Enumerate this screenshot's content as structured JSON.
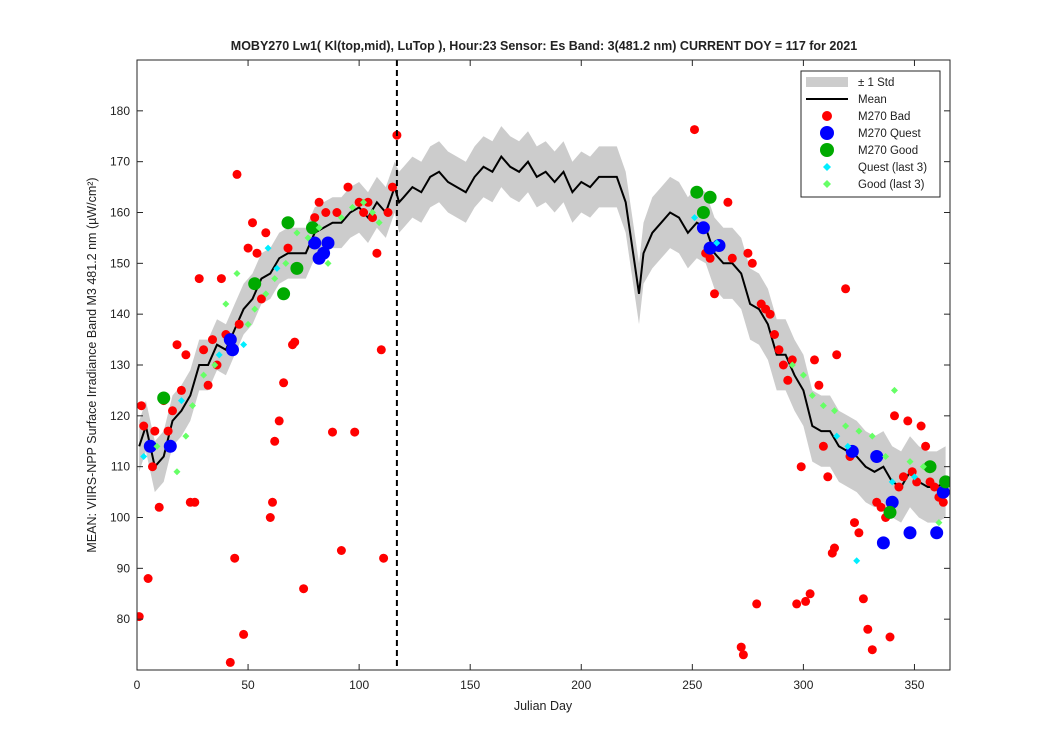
{
  "chart_data": {
    "type": "scatter",
    "title": "MOBY270   Lw1( Kl(top,mid), LuTop ),   Hour:23 Sensor: Es Band: 3(481.2 nm)   CURRENT DOY = 117 for 2021",
    "xlabel": "Julian Day",
    "ylabel": "MEAN: VIIRS-NPP Surface Irradiance Band M3 481.2 nm (µW/cm²)",
    "xlim": [
      0,
      366
    ],
    "ylim": [
      70,
      190
    ],
    "xticks": [
      "0",
      "50",
      "100",
      "150",
      "200",
      "250",
      "300",
      "350"
    ],
    "yticks": [
      "80",
      "90",
      "100",
      "110",
      "120",
      "130",
      "140",
      "150",
      "160",
      "170",
      "180"
    ],
    "current_doy": 117,
    "grid": false,
    "legend_position": "top-right",
    "legend": {
      "std": "± 1 Std",
      "mean": "Mean",
      "bad": "M270 Bad",
      "quest": "M270 Quest",
      "good": "M270 Good",
      "quest3": "Quest (last 3)",
      "good3": "Good (last 3)"
    },
    "colors": {
      "std_band": "#cccccc",
      "mean": "#000000",
      "bad": "#ff0000",
      "quest": "#0000ff",
      "good": "#00aa00",
      "quest3": "#00eeff",
      "good3": "#66ff66",
      "current_line": "#000000"
    },
    "mean_series": {
      "x": [
        1,
        4,
        8,
        12,
        16,
        20,
        24,
        28,
        32,
        36,
        40,
        44,
        48,
        52,
        56,
        60,
        64,
        68,
        72,
        76,
        80,
        84,
        88,
        92,
        96,
        100,
        104,
        108,
        112,
        116,
        118,
        120,
        124,
        128,
        132,
        136,
        140,
        144,
        148,
        152,
        156,
        160,
        164,
        168,
        172,
        176,
        180,
        184,
        188,
        192,
        196,
        200,
        204,
        208,
        212,
        216,
        220,
        224,
        226,
        228,
        232,
        236,
        240,
        244,
        248,
        252,
        256,
        260,
        264,
        268,
        272,
        276,
        280,
        284,
        288,
        292,
        296,
        300,
        304,
        308,
        312,
        316,
        320,
        324,
        328,
        332,
        336,
        340,
        344,
        348,
        352,
        356,
        360,
        364
      ],
      "y": [
        114,
        118,
        110,
        112,
        119,
        121,
        124,
        130,
        130,
        134,
        133,
        137,
        141,
        143,
        147,
        148,
        151,
        152,
        152,
        152,
        156,
        157,
        158,
        158,
        160,
        161,
        159,
        162,
        160,
        165,
        162,
        163,
        165,
        164,
        167,
        168,
        166,
        165,
        164,
        167,
        169,
        168,
        171,
        169,
        168,
        170,
        167,
        168,
        166,
        168,
        164,
        166,
        165,
        167,
        167,
        167,
        162,
        150,
        144,
        152,
        156,
        158,
        160,
        159,
        156,
        158,
        157,
        152,
        150,
        150,
        148,
        142,
        141,
        138,
        132,
        132,
        128,
        125,
        118,
        117,
        117,
        114,
        113,
        112,
        110,
        109,
        110,
        107,
        106,
        109,
        107,
        106,
        106,
        107
      ],
      "std": [
        5,
        5,
        5,
        5,
        5,
        5,
        5,
        5,
        5,
        5,
        5,
        5,
        5,
        5,
        5,
        5,
        5,
        5,
        5,
        5,
        5,
        5,
        5,
        5,
        5,
        5,
        5,
        5,
        5,
        5,
        6,
        6,
        6,
        6,
        6,
        6,
        6,
        6,
        6,
        6,
        6,
        6,
        6,
        6,
        6,
        6,
        6,
        6,
        6,
        6,
        6,
        6,
        6,
        6,
        6,
        6,
        6,
        6,
        6,
        6,
        7,
        7,
        7,
        7,
        7,
        7,
        7,
        7,
        7,
        7,
        7,
        7,
        7,
        7,
        7,
        7,
        7,
        7,
        7,
        7,
        7,
        7,
        7,
        7,
        7,
        7,
        7,
        7,
        7,
        7,
        7,
        7,
        7,
        7
      ]
    },
    "series": [
      {
        "name": "M270 Bad",
        "x": [
          1,
          2,
          3,
          5,
          7,
          8,
          10,
          12,
          14,
          16,
          18,
          20,
          22,
          24,
          26,
          28,
          30,
          32,
          34,
          36,
          38,
          40,
          42,
          44,
          45,
          46,
          48,
          50,
          52,
          54,
          56,
          58,
          60,
          61,
          62,
          64,
          66,
          68,
          70,
          71,
          75,
          80,
          82,
          85,
          88,
          90,
          92,
          95,
          98,
          100,
          102,
          104,
          106,
          108,
          110,
          111,
          113,
          115,
          117,
          251,
          256,
          258,
          260,
          266,
          268,
          272,
          273,
          275,
          277,
          279,
          281,
          283,
          285,
          287,
          289,
          291,
          293,
          295,
          297,
          299,
          301,
          303,
          305,
          307,
          309,
          311,
          313,
          314,
          315,
          319,
          321,
          323,
          325,
          327,
          329,
          331,
          333,
          335,
          337,
          339,
          341,
          343,
          345,
          347,
          349,
          351,
          353,
          355,
          357,
          359,
          361,
          363
        ],
        "y": [
          80.5,
          122,
          118,
          88,
          110,
          117,
          102,
          123,
          117,
          121,
          134,
          125,
          132,
          103,
          103,
          147,
          133,
          126,
          135,
          130,
          147,
          136,
          71.5,
          92,
          167.5,
          138,
          77,
          153,
          158,
          152,
          143,
          156,
          100,
          103,
          115,
          119,
          126.5,
          153,
          134,
          134.5,
          86,
          159,
          162,
          160,
          116.8,
          160,
          93.5,
          165,
          116.8,
          162,
          160,
          162,
          159,
          152,
          133,
          92,
          160,
          165,
          175.2,
          176.3,
          152,
          151,
          144,
          162,
          151,
          74.5,
          73,
          152,
          150,
          83,
          142,
          141,
          140,
          136,
          133,
          130,
          127,
          131,
          83,
          110,
          83.5,
          85,
          131,
          126,
          114,
          108,
          93,
          94,
          132,
          145,
          112,
          99,
          97,
          84,
          78,
          74,
          103,
          102,
          100,
          76.5,
          120,
          106,
          108,
          119,
          109,
          107,
          118,
          114,
          107,
          106,
          104,
          103
        ]
      },
      {
        "name": "M270 Quest",
        "x": [
          6,
          15,
          42,
          43,
          80,
          82,
          84,
          86,
          255,
          258,
          262,
          322,
          333,
          336,
          340,
          348,
          360,
          363
        ],
        "y": [
          114,
          114,
          135,
          133,
          154,
          151,
          152,
          154,
          157,
          153,
          153.5,
          113,
          112,
          95,
          103,
          97,
          97,
          105
        ]
      },
      {
        "name": "M270 Good",
        "x": [
          12,
          53,
          66,
          68,
          72,
          79,
          252,
          255,
          258,
          339,
          357,
          364
        ],
        "y": [
          123.5,
          146,
          144,
          158,
          149,
          157,
          164,
          160,
          163,
          101,
          110,
          107
        ]
      },
      {
        "name": "Quest (last 3)",
        "x": [
          3,
          20,
          37,
          48,
          59,
          63,
          251,
          261,
          315,
          320,
          324,
          340,
          350
        ],
        "y": [
          112,
          123,
          132,
          134,
          153,
          149,
          159,
          154,
          116,
          114,
          91.5,
          107,
          108
        ]
      },
      {
        "name": "Good (last 3)",
        "x": [
          9,
          18,
          22,
          25,
          30,
          35,
          40,
          45,
          50,
          53,
          58,
          62,
          67,
          72,
          77,
          82,
          86,
          92,
          97,
          102,
          106,
          109,
          295,
          300,
          304,
          309,
          314,
          319,
          325,
          331,
          337,
          341,
          348,
          354,
          361
        ],
        "y": [
          114,
          109,
          116,
          122,
          128,
          130,
          142,
          148,
          138,
          141,
          144,
          147,
          150,
          156,
          155,
          157,
          150,
          159,
          161,
          162,
          160,
          158,
          130,
          128,
          124,
          122,
          121,
          118,
          117,
          116,
          112,
          125,
          111,
          110,
          99
        ]
      }
    ]
  }
}
